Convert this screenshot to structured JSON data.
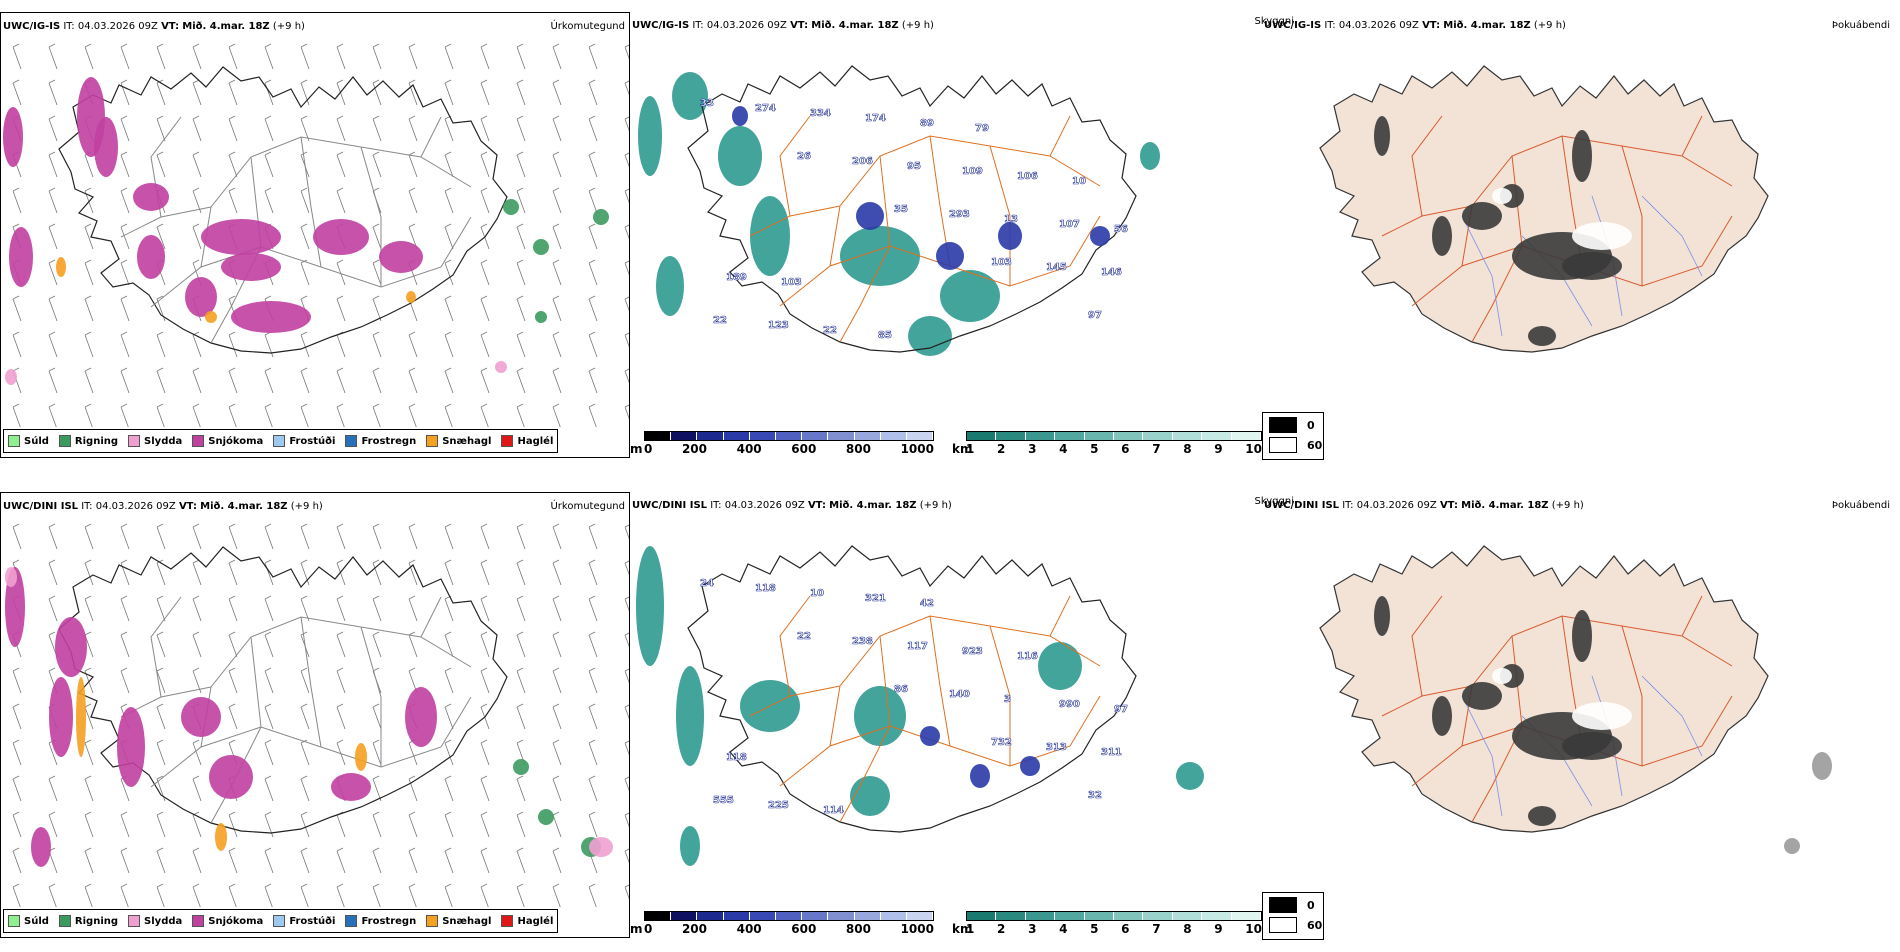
{
  "rows": [
    {
      "model_top_left": "UWC/IG-IS",
      "model_top_mid": "UWC/IG-IS",
      "model_top_right": "UWC/IG-IS",
      "it_label": "IT:",
      "it_value": "04.03.2026 09Z",
      "vt_label": "VT:",
      "vt_value": "Mið. 4.mar. 18Z",
      "offset": "(+9 h)",
      "labels": [
        "33",
        "26",
        "35",
        "103",
        "97",
        "274",
        "206",
        "293",
        "145",
        "22",
        "334",
        "95",
        "13",
        "146",
        "123",
        "174",
        "109",
        "107",
        "189",
        "22",
        "89",
        "106",
        "56",
        "103",
        "85",
        "79",
        "10"
      ]
    },
    {
      "model_top_left": "UWC/DINI ISL",
      "model_top_mid": "UWC/DINI ISL",
      "model_top_right": "UWC/DINI ISL",
      "it_label": "IT:",
      "it_value": "04.03.2026 09Z",
      "vt_label": "VT:",
      "vt_value": "Mið. 4.mar. 18Z",
      "offset": "(+9 h)",
      "labels": [
        "24",
        "22",
        "86",
        "732",
        "32",
        "118",
        "238",
        "140",
        "313",
        "555",
        "10",
        "117",
        "3",
        "311",
        "225",
        "321",
        "923",
        "990",
        "118",
        "114",
        "42",
        "116",
        "97"
      ]
    }
  ],
  "titles": {
    "precip_type": "Úrkomutegund",
    "visibility": "Skyggni",
    "fog": "Þokuábendi"
  },
  "precip_legend": [
    {
      "label": "Súld",
      "color": "#90ee90"
    },
    {
      "label": "Rigning",
      "color": "#3c9a5f"
    },
    {
      "label": "Slydda",
      "color": "#f0a0d0"
    },
    {
      "label": "Snjókoma",
      "color": "#c040a0"
    },
    {
      "label": "Frostúði",
      "color": "#9fc8f0"
    },
    {
      "label": "Frostregn",
      "color": "#2a70b8"
    },
    {
      "label": "Snæhagl",
      "color": "#f5a020"
    },
    {
      "label": "Haglél",
      "color": "#e01818"
    }
  ],
  "cloudbase_bar": {
    "unit": "m",
    "ticks": [
      "0",
      "200",
      "400",
      "600",
      "800",
      "1000"
    ],
    "colors": [
      "#000000",
      "#101060",
      "#1c2a90",
      "#2a3aa8",
      "#3848b4",
      "#5060c0",
      "#6878c8",
      "#8090d0",
      "#98a8dc",
      "#b0c0e8",
      "#c8d4f0"
    ]
  },
  "visibility_bar": {
    "unit": "km",
    "ticks": [
      "1",
      "2",
      "3",
      "4",
      "5",
      "6",
      "7",
      "8",
      "9",
      "10"
    ],
    "colors": [
      "#1a7a70",
      "#2a8a80",
      "#3a9890",
      "#50a8a0",
      "#68b6ae",
      "#80c4bc",
      "#98d2ca",
      "#b0ded8",
      "#c8eae4",
      "#e0f4f0"
    ]
  },
  "fog_legend": [
    {
      "label": "0",
      "color": "#000000"
    },
    {
      "label": "60",
      "color": "#ffffff"
    }
  ],
  "colors": {
    "land_fill": "#f3e3d6",
    "road": "#e07020",
    "river": "#7a90e8",
    "vis_teal": "#2f9a90",
    "cloud_blue": "#2a3aa8",
    "snow": "#c040a0",
    "rain": "#3c9a5f",
    "graupel": "#f5a020",
    "sleet": "#f0a0d0"
  }
}
